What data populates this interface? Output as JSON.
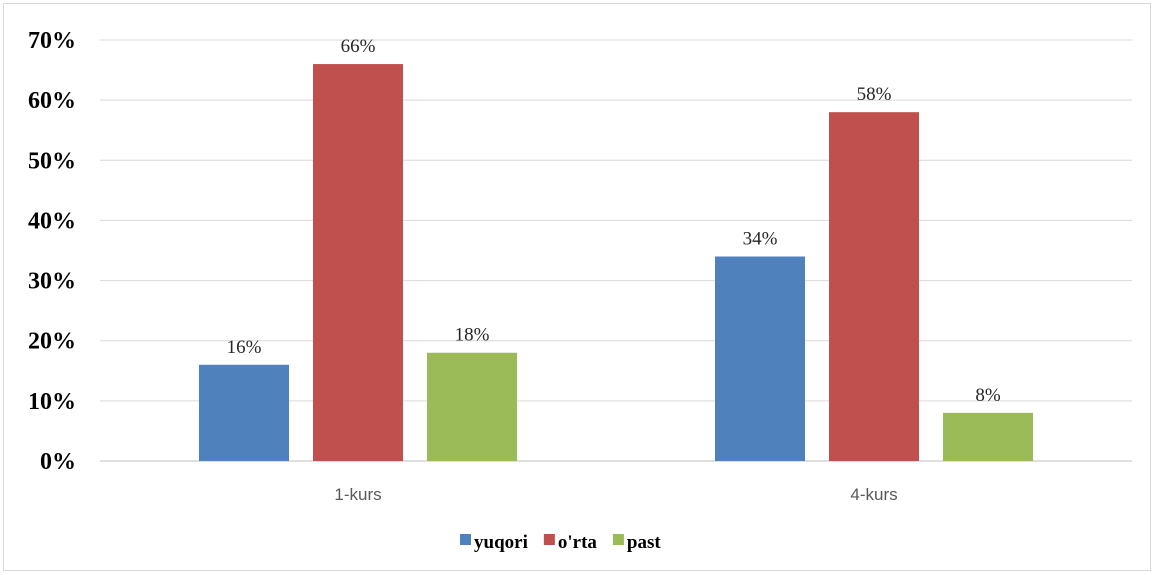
{
  "chart_data": {
    "type": "bar",
    "title": "",
    "xlabel": "",
    "ylabel": "",
    "categories": [
      "1-kurs",
      "4-kurs"
    ],
    "series": [
      {
        "name": "yuqori",
        "values": [
          16,
          34
        ],
        "color": "#4f81bd"
      },
      {
        "name": "o'rta",
        "values": [
          66,
          58
        ],
        "color": "#c0504d"
      },
      {
        "name": "past",
        "values": [
          18,
          8
        ],
        "color": "#9bbb59"
      }
    ],
    "value_suffix": "%",
    "ylim": [
      0,
      70
    ],
    "yticks": [
      0,
      10,
      20,
      30,
      40,
      50,
      60,
      70
    ],
    "ytick_labels": [
      "0%",
      "10%",
      "20%",
      "30%",
      "40%",
      "50%",
      "60%",
      "70%"
    ],
    "grid": true,
    "legend_position": "bottom"
  }
}
